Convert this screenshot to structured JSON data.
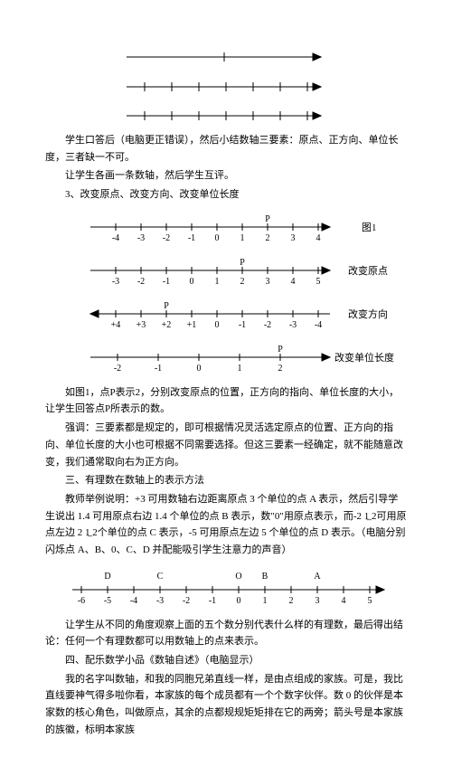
{
  "top_arrows": {
    "stroke": "#000000",
    "stroke_width": 1
  },
  "p1": "学生口答后（电脑更正错误），然后小结数轴三要素：原点、正方向、单位长度，三者缺一不可。",
  "p2": "让学生各画一条数轴，然后学生互评。",
  "p3": "3、改变原点、改变方向、改变单位长度",
  "fig_labels": {
    "tu1": "图1",
    "l1": "改变原点",
    "l2": "改变方向",
    "l3": "改变单位长度",
    "P": "P"
  },
  "line1": {
    "ticks": [
      "-4",
      "-3",
      "-2",
      "-1",
      "0",
      "1",
      "2",
      "3",
      "4"
    ],
    "P_at": 6,
    "stroke": "#000000"
  },
  "line2": {
    "ticks": [
      "-3",
      "-2",
      "-1",
      "0",
      "1",
      "2",
      "3",
      "4",
      "5"
    ],
    "P_at": 5,
    "stroke": "#000000"
  },
  "line3": {
    "ticks": [
      "+4",
      "+3",
      "+2",
      "+1",
      "0",
      "-1",
      "-2",
      "-3",
      "-4"
    ],
    "P_at": 2,
    "stroke": "#000000"
  },
  "sparse": {
    "ticks": [
      "-2",
      "-1",
      "0",
      "1",
      "2"
    ],
    "P_at": 3,
    "stroke": "#000000"
  },
  "p4": "如图1，点P表示2，分别改变原点的位置，正方向的指向、单位长度的大小，让学生回答点P所表示的数。",
  "p5": "强调：三要素都是规定的，即可根据情况灵活选定原点的位置、正方向的指向、单位长度的大小也可根据不同需要选择。但这三要素一经确定，就不能随意改变，我们通常取向右为正方向。",
  "p6": "三、有理数在数轴上的表示方法",
  "p7": "教师举例说明：+3 可用数轴右边距离原点 3 个单位的点 A 表示，然后引导学生说出 1.4 可用原点右边 1.4 个单位的点 B 表示，数\"0\"用原点表示，而-2 1̲ 2可用原点左边 2 1̲ 2个单位的点 C 表示，-5 可用原点左边 5 个单位的点 D 表示。（电脑分别闪烁点 A、B、0、C、D 并配能吸引学生注意力的声音）",
  "line5": {
    "ticks": [
      "-6",
      "-5",
      "-4",
      "-3",
      "-2",
      "-1",
      "0",
      "1",
      "2",
      "3",
      "4",
      "5"
    ],
    "top_labels": {
      "D": 1,
      "C": 3,
      "O": 6,
      "B": 7,
      "A": 9
    },
    "stroke": "#000000"
  },
  "p8": "让学生从不同的角度观察上面的五个数分别代表什么样的有理数，最后得出结论：任何一个有理数都可以用数轴上的点来表示。",
  "p9": "四、配乐数学小品《数轴自述》（电脑显示）",
  "p10": "我的名字叫数轴，和我的同胞兄弟直线一样，是由点组成的家族。可是，我比直线要神气得多啦你看，本家族的每个成员都有一个个数字伙伴。数 0 的伙伴是本家数的核心角色，叫做原点，其余的点都规规矩矩排在它的两旁；箭头号是本家族的族徽，标明本家族"
}
